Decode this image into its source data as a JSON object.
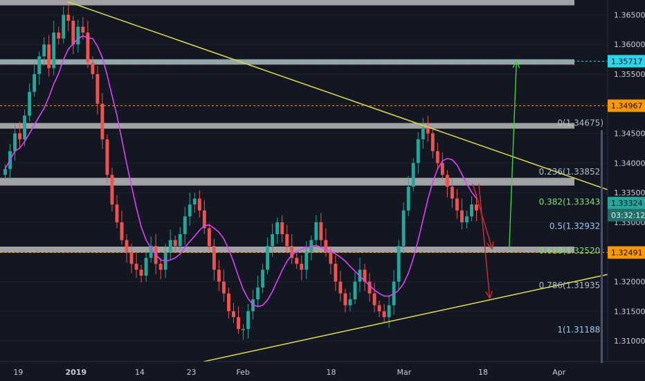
{
  "chart_data": {
    "type": "candlestick",
    "instrument_hint": "",
    "colors": {
      "background": "#131722",
      "up": "#26a69a",
      "down": "#ef5350",
      "ma": "#e040fb",
      "trendline": "#d8d54a",
      "zone": "#c9c9c9",
      "fib_orange_line": "#ff9800",
      "cyan_line": "#2dd5e8",
      "arrow_green": "#44d33a",
      "arrow_red": "#d32f2f",
      "axis_text": "#c8ccd6"
    },
    "y_axis": {
      "min": 1.3065,
      "max": 1.3675,
      "ticks": [
        "1.31000",
        "1.31500",
        "1.32000",
        "1.32500",
        "1.33000",
        "1.33500",
        "1.34000",
        "1.34500",
        "1.35000",
        "1.35500",
        "1.36000",
        "1.36500"
      ]
    },
    "x_axis": {
      "labels": [
        "19",
        "2019",
        "14",
        "23",
        "Feb",
        "18",
        "Mar",
        "18",
        "Apr"
      ]
    },
    "price_tags": [
      {
        "id": "cyan",
        "text": "1.35717",
        "price": 1.35717,
        "bg": "#2dd5e8",
        "fg": "#0b1420"
      },
      {
        "id": "orange1",
        "text": "1.34967",
        "price": 1.34967,
        "bg": "#ff9800",
        "fg": "#111111"
      },
      {
        "id": "current",
        "text": "1.33324",
        "price": 1.33324,
        "bg": "#26a69a",
        "fg": "#0b1420"
      },
      {
        "id": "timer",
        "text": "03:32:12",
        "price": 1.3312,
        "bg": "#1f6f68",
        "fg": "#e8f4f3"
      },
      {
        "id": "orange2",
        "text": "1.32491",
        "price": 1.32491,
        "bg": "#ff9800",
        "fg": "#111111"
      }
    ],
    "fib_levels": [
      {
        "text": "0(1.34675)",
        "price": 1.34675,
        "color": "#b0bec5"
      },
      {
        "text": "0.236(1.33852)",
        "price": 1.33852,
        "color": "#b0bec5"
      },
      {
        "text": "0.382(1.33343)",
        "price": 1.33343,
        "color": "#7ce36d"
      },
      {
        "text": "0.5(1.32932)",
        "price": 1.32932,
        "color": "#9fc7ef"
      },
      {
        "text": "0.618(1.32520)",
        "price": 1.3252,
        "color": "#7ce36d"
      },
      {
        "text": "0.786(1.31935)",
        "price": 1.31935,
        "color": "#b0bec5"
      },
      {
        "text": "1(1.31188)",
        "price": 1.31188,
        "color": "#9fc7ef"
      }
    ],
    "zones": [
      {
        "top": 1.3675,
        "bottom": 1.3666
      },
      {
        "top": 1.3575,
        "bottom": 1.3566
      },
      {
        "top": 1.34675,
        "bottom": 1.3458
      },
      {
        "top": 1.3375,
        "bottom": 1.3362
      },
      {
        "top": 1.3259,
        "bottom": 1.3249
      }
    ],
    "horizontal_lines": [
      {
        "price": 1.35717,
        "style": "cyan"
      },
      {
        "price": 1.34967,
        "style": "orange"
      },
      {
        "price": 1.32491,
        "style": "orange"
      }
    ],
    "trendlines": [
      {
        "x1": 0.112,
        "p1": 1.3672,
        "x2": 1.0,
        "p2": 1.3355
      },
      {
        "x1": 0.335,
        "p1": 1.3065,
        "x2": 1.0,
        "p2": 1.3212
      }
    ],
    "candles_seed": [
      1.339,
      1.342,
      1.345,
      1.344,
      1.348,
      1.352,
      1.355,
      1.358,
      1.36,
      1.356,
      1.362,
      1.361,
      1.365,
      1.364,
      1.36,
      1.363,
      1.362,
      1.357,
      1.355,
      1.35,
      1.344,
      1.338,
      1.333,
      1.33,
      1.327,
      1.325,
      1.323,
      1.322,
      1.321,
      1.324,
      1.326,
      1.323,
      1.322,
      1.325,
      1.327,
      1.326,
      1.328,
      1.331,
      1.333,
      1.334,
      1.332,
      1.329,
      1.326,
      1.322,
      1.32,
      1.318,
      1.315,
      1.314,
      1.312,
      1.312,
      1.315,
      1.317,
      1.319,
      1.322,
      1.326,
      1.328,
      1.33,
      1.328,
      1.326,
      1.324,
      1.323,
      1.322,
      1.325,
      1.327,
      1.33,
      1.327,
      1.325,
      1.323,
      1.32,
      1.318,
      1.316,
      1.317,
      1.32,
      1.322,
      1.32,
      1.318,
      1.316,
      1.315,
      1.314,
      1.316,
      1.32,
      1.326,
      1.332,
      1.336,
      1.34,
      1.344,
      1.346,
      1.345,
      1.342,
      1.34,
      1.338,
      1.336,
      1.334,
      1.332,
      1.33,
      1.331,
      1.333,
      1.332
    ],
    "arrows": [
      {
        "color": "green",
        "x1": 0.838,
        "p1": 1.3255,
        "x2": 0.85,
        "p2": 1.3572
      },
      {
        "color": "red",
        "x1": 0.778,
        "p1": 1.3365,
        "x2": 0.81,
        "p2": 1.3255
      },
      {
        "color": "red",
        "x1": 0.788,
        "p1": 1.3365,
        "x2": 0.806,
        "p2": 1.3172
      }
    ]
  }
}
